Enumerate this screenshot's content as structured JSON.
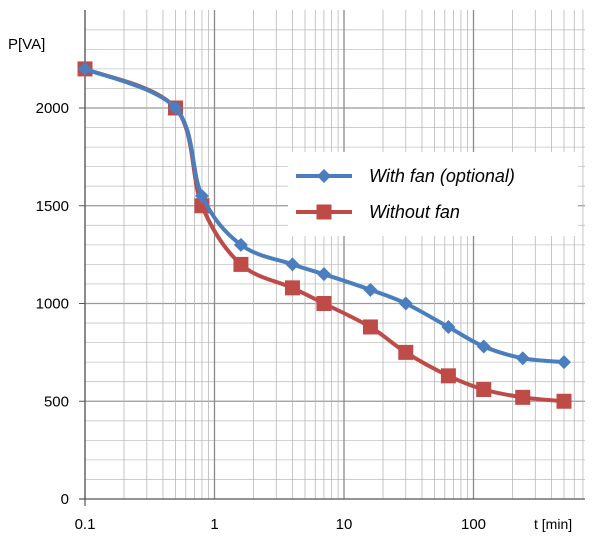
{
  "chart_data": {
    "type": "line",
    "x_scale": "log",
    "x_ticks": [
      0.1,
      1,
      10,
      100
    ],
    "x_tick_labels": [
      "0.1",
      "1",
      "10",
      "100"
    ],
    "xlabel": "t [min]",
    "xlim": [
      0.1,
      600
    ],
    "ylabel": "P[VA]",
    "ylim": [
      0,
      2200
    ],
    "y_ticks": [
      0,
      500,
      1000,
      1500,
      2000
    ],
    "y_tick_labels": [
      "0",
      "500",
      "1000",
      "1500",
      "2000"
    ],
    "grid": true,
    "legend_position": "right",
    "series": [
      {
        "name": "With fan (optional)",
        "color": "#4a7ebf",
        "marker": "diamond",
        "x": [
          0.1,
          0.5,
          0.8,
          1.6,
          4,
          7,
          16,
          30,
          64,
          120,
          240,
          500
        ],
        "y": [
          2200,
          2000,
          1550,
          1300,
          1200,
          1150,
          1070,
          1000,
          880,
          780,
          720,
          700
        ]
      },
      {
        "name": "Without fan",
        "color": "#be4b48",
        "marker": "square",
        "x": [
          0.1,
          0.5,
          0.8,
          1.6,
          4,
          7,
          16,
          30,
          64,
          120,
          240,
          500
        ],
        "y": [
          2200,
          2000,
          1500,
          1200,
          1080,
          1000,
          880,
          750,
          630,
          560,
          520,
          500
        ]
      }
    ]
  }
}
